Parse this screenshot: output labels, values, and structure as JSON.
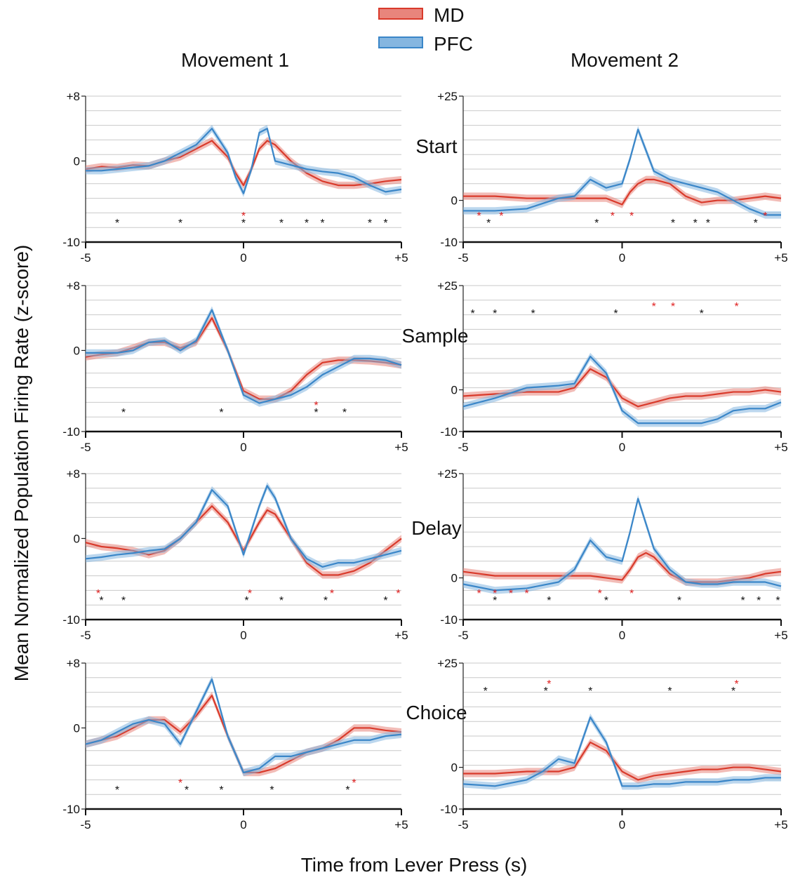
{
  "legend": [
    {
      "name": "MD",
      "color": "#d93a2b"
    },
    {
      "name": "PFC",
      "color": "#3a86c8"
    }
  ],
  "column_titles": [
    "Movement 1",
    "Movement 2"
  ],
  "row_labels": [
    "Start",
    "Sample",
    "Delay",
    "Choice"
  ],
  "ylabel": "Mean Normalized Population Firing Rate (z-score)",
  "xlabel": "Time from Lever Press (s)",
  "chart_data": [
    {
      "type": "line",
      "panel": "Movement 1 - Start",
      "xlim": [
        -5,
        5
      ],
      "ylim": [
        -10,
        8
      ],
      "xticks": [
        "-5",
        "0",
        "+5"
      ],
      "yticks": [
        "+8",
        "0",
        "-10"
      ],
      "x": [
        -5,
        -4.5,
        -4,
        -3.5,
        -3,
        -2.5,
        -2,
        -1.5,
        -1,
        -0.5,
        -0.25,
        0,
        0.25,
        0.5,
        0.75,
        1,
        1.5,
        2,
        2.5,
        3,
        3.5,
        4,
        4.5,
        5
      ],
      "series": [
        {
          "name": "MD",
          "values": [
            -1,
            -0.7,
            -0.8,
            -0.5,
            -0.6,
            0,
            0.5,
            1.5,
            2.5,
            0.5,
            -1.5,
            -3,
            -1,
            1.5,
            2.5,
            2,
            0,
            -1.5,
            -2.5,
            -3,
            -3,
            -2.8,
            -2.5,
            -2.3
          ]
        },
        {
          "name": "PFC",
          "values": [
            -1.2,
            -1.2,
            -1,
            -0.8,
            -0.6,
            0,
            1,
            2,
            4,
            1,
            -2,
            -4,
            -1,
            3.5,
            4,
            0,
            -0.5,
            -1,
            -1.3,
            -1.5,
            -2,
            -3,
            -3.8,
            -3.5
          ]
        }
      ],
      "significance": {
        "MD": [
          0
        ],
        "both": [
          -4,
          -2,
          0,
          1.2,
          2,
          2.5,
          4,
          4.5
        ]
      }
    },
    {
      "type": "line",
      "panel": "Movement 2 - Start",
      "xlim": [
        -5,
        5
      ],
      "ylim": [
        -10,
        25
      ],
      "xticks": [
        "-5",
        "0",
        "+5"
      ],
      "yticks": [
        "+25",
        "0",
        "-10"
      ],
      "x": [
        -5,
        -4,
        -3,
        -2,
        -1.5,
        -1,
        -0.5,
        0,
        0.25,
        0.5,
        0.75,
        1,
        1.5,
        2,
        2.5,
        3,
        3.5,
        4,
        4.5,
        5
      ],
      "series": [
        {
          "name": "MD",
          "values": [
            1,
            1,
            0.5,
            0.5,
            0.5,
            0.5,
            0.5,
            -1,
            2,
            4,
            5,
            5,
            4,
            1,
            -0.5,
            0,
            0,
            0.5,
            1,
            0.5
          ]
        },
        {
          "name": "PFC",
          "values": [
            -2.5,
            -2.5,
            -2,
            0.5,
            1,
            5,
            3,
            4,
            10,
            17,
            12,
            7,
            5,
            4,
            3,
            2,
            0,
            -2,
            -3.5,
            -3.5
          ]
        }
      ],
      "significance": {
        "MD": [
          -4.5,
          -3.8,
          -0.3,
          0.3,
          4.5
        ],
        "both": [
          -4.2,
          -0.8,
          1.6,
          2.3,
          2.7,
          4.2
        ]
      }
    },
    {
      "type": "line",
      "panel": "Movement 1 - Sample",
      "xlim": [
        -5,
        5
      ],
      "ylim": [
        -10,
        8
      ],
      "xticks": [
        "-5",
        "0",
        "+5"
      ],
      "yticks": [
        "+8",
        "0",
        "-10"
      ],
      "x": [
        -5,
        -4.5,
        -4,
        -3.5,
        -3,
        -2.5,
        -2,
        -1.5,
        -1,
        -0.5,
        0,
        0.5,
        1,
        1.5,
        2,
        2.5,
        3,
        3.5,
        4,
        4.5,
        5
      ],
      "series": [
        {
          "name": "MD",
          "values": [
            -0.8,
            -0.5,
            -0.3,
            0.3,
            1,
            1,
            0.3,
            1,
            4,
            0,
            -5,
            -6,
            -6,
            -5,
            -3,
            -1.5,
            -1.2,
            -1.2,
            -1.3,
            -1.5,
            -1.8
          ]
        },
        {
          "name": "PFC",
          "values": [
            -0.3,
            -0.3,
            -0.3,
            0,
            1,
            1.2,
            0,
            1.2,
            5,
            0,
            -5.5,
            -6.5,
            -6,
            -5.5,
            -4.5,
            -3,
            -2,
            -1,
            -1,
            -1.2,
            -1.8
          ]
        }
      ],
      "significance": {
        "MD": [
          2.3
        ],
        "both": [
          -3.8,
          -0.7,
          2.3,
          3.2
        ]
      }
    },
    {
      "type": "line",
      "panel": "Movement 2 - Sample",
      "xlim": [
        -5,
        5
      ],
      "ylim": [
        -10,
        25
      ],
      "xticks": [
        "-5",
        "0",
        "+5"
      ],
      "yticks": [
        "+25",
        "0",
        "-10"
      ],
      "x": [
        -5,
        -4,
        -3,
        -2,
        -1.5,
        -1,
        -0.5,
        0,
        0.5,
        1,
        1.5,
        2,
        2.5,
        3,
        3.5,
        4,
        4.5,
        5
      ],
      "series": [
        {
          "name": "MD",
          "values": [
            -1.5,
            -1,
            -0.5,
            -0.5,
            0.5,
            5,
            3,
            -2,
            -4,
            -3,
            -2,
            -1.5,
            -1.5,
            -1,
            -0.5,
            -0.5,
            0,
            -0.5
          ]
        },
        {
          "name": "PFC",
          "values": [
            -4,
            -2,
            0.5,
            1,
            1.5,
            8,
            4,
            -5,
            -8,
            -8,
            -8,
            -8,
            -8,
            -7,
            -5,
            -4.5,
            -4.5,
            -3
          ]
        }
      ],
      "significance": {
        "MD": [
          1,
          1.6,
          3.6
        ],
        "both": [
          -4.7,
          -4,
          -2.8,
          -0.2,
          2.5
        ]
      }
    },
    {
      "type": "line",
      "panel": "Movement 1 - Delay",
      "xlim": [
        -5,
        5
      ],
      "ylim": [
        -10,
        8
      ],
      "xticks": [
        "-5",
        "0",
        "+5"
      ],
      "yticks": [
        "+8",
        "0",
        "-10"
      ],
      "x": [
        -5,
        -4.5,
        -4,
        -3.5,
        -3,
        -2.5,
        -2,
        -1.5,
        -1,
        -0.5,
        0,
        0.5,
        0.75,
        1,
        1.5,
        2,
        2.5,
        3,
        3.5,
        4,
        4.5,
        5
      ],
      "series": [
        {
          "name": "MD",
          "values": [
            -0.5,
            -1,
            -1.2,
            -1.5,
            -2,
            -1.5,
            0,
            2,
            4,
            2,
            -1.5,
            2,
            3.5,
            3,
            0,
            -3,
            -4.5,
            -4.5,
            -4,
            -3,
            -1.5,
            0
          ]
        },
        {
          "name": "PFC",
          "values": [
            -2.5,
            -2.3,
            -2,
            -1.8,
            -1.5,
            -1.3,
            0,
            2,
            6,
            4,
            -2,
            4,
            6.5,
            5,
            0,
            -2.5,
            -3.5,
            -3,
            -3,
            -2.5,
            -2,
            -1.5
          ]
        }
      ],
      "significance": {
        "MD": [
          -4.6,
          0.2,
          2.8,
          4.9
        ],
        "both": [
          -4.5,
          -3.8,
          0.1,
          1.2,
          2.6,
          4.5
        ]
      }
    },
    {
      "type": "line",
      "panel": "Movement 2 - Delay",
      "xlim": [
        -5,
        5
      ],
      "ylim": [
        -10,
        25
      ],
      "xticks": [
        "-5",
        "0",
        "+5"
      ],
      "yticks": [
        "+25",
        "0",
        "-10"
      ],
      "x": [
        -5,
        -4,
        -3,
        -2,
        -1.5,
        -1,
        -0.5,
        0,
        0.25,
        0.5,
        0.75,
        1,
        1.5,
        2,
        2.5,
        3,
        3.5,
        4,
        4.5,
        5
      ],
      "series": [
        {
          "name": "MD",
          "values": [
            1.5,
            0.5,
            0.5,
            0.5,
            0.5,
            0.5,
            0,
            -0.5,
            2,
            5,
            6,
            5,
            1,
            -1,
            -1,
            -1,
            -0.5,
            0,
            1,
            1.5
          ]
        },
        {
          "name": "PFC",
          "values": [
            -1.5,
            -3,
            -2.5,
            -1,
            2,
            9,
            5,
            4,
            11,
            19,
            13,
            7,
            2,
            -1,
            -1.5,
            -1.5,
            -1,
            -1,
            -1,
            -2
          ]
        }
      ],
      "significance": {
        "MD": [
          -4.5,
          -4,
          -3.5,
          -3,
          -0.7,
          0.3
        ],
        "both": [
          -4,
          -2.3,
          -0.5,
          1.8,
          3.8,
          4.3,
          4.9
        ]
      }
    },
    {
      "type": "line",
      "panel": "Movement 1 - Choice",
      "xlim": [
        -5,
        5
      ],
      "ylim": [
        -10,
        8
      ],
      "xticks": [
        "-5",
        "0",
        "+5"
      ],
      "yticks": [
        "+8",
        "0",
        "-10"
      ],
      "x": [
        -5,
        -4.5,
        -4,
        -3.5,
        -3,
        -2.5,
        -2,
        -1.5,
        -1,
        -0.5,
        0,
        0.5,
        1,
        1.5,
        2,
        2.5,
        3,
        3.5,
        4,
        4.5,
        5
      ],
      "series": [
        {
          "name": "MD",
          "values": [
            -2,
            -1.5,
            -1,
            0,
            1,
            1,
            -0.5,
            1.5,
            4,
            -1,
            -5.5,
            -5.5,
            -5,
            -4,
            -3,
            -2.5,
            -1.5,
            0,
            0,
            -0.3,
            -0.5
          ]
        },
        {
          "name": "PFC",
          "values": [
            -2,
            -1.5,
            -0.5,
            0.5,
            1,
            0.5,
            -2,
            2,
            6,
            -1,
            -5.5,
            -5,
            -3.5,
            -3.5,
            -3,
            -2.5,
            -2,
            -1.5,
            -1.5,
            -1,
            -0.8
          ]
        }
      ],
      "significance": {
        "MD": [
          -2,
          3.5
        ],
        "both": [
          -4,
          -1.8,
          -0.7,
          0.9,
          3.3
        ]
      }
    },
    {
      "type": "line",
      "panel": "Movement 2 - Choice",
      "xlim": [
        -5,
        5
      ],
      "ylim": [
        -10,
        25
      ],
      "xticks": [
        "-5",
        "0",
        "+5"
      ],
      "yticks": [
        "+25",
        "0",
        "-10"
      ],
      "x": [
        -5,
        -4,
        -3,
        -2.5,
        -2,
        -1.5,
        -1,
        -0.5,
        0,
        0.5,
        1,
        1.5,
        2,
        2.5,
        3,
        3.5,
        4,
        4.5,
        5
      ],
      "series": [
        {
          "name": "MD",
          "values": [
            -1.5,
            -1.5,
            -1,
            -1,
            -1,
            0,
            6,
            4,
            -1,
            -3,
            -2,
            -1.5,
            -1,
            -0.5,
            -0.5,
            0,
            0,
            -0.5,
            -1
          ]
        },
        {
          "name": "PFC",
          "values": [
            -4,
            -4.5,
            -3,
            -1,
            2,
            1,
            12,
            6,
            -4.5,
            -4.5,
            -4,
            -4,
            -3.5,
            -3.5,
            -3.5,
            -3,
            -3,
            -2.5,
            -2.5
          ]
        }
      ],
      "significance": {
        "MD": [
          -2.3,
          3.6
        ],
        "both": [
          -4.3,
          -2.4,
          -1,
          1.5,
          3.5
        ]
      }
    }
  ]
}
